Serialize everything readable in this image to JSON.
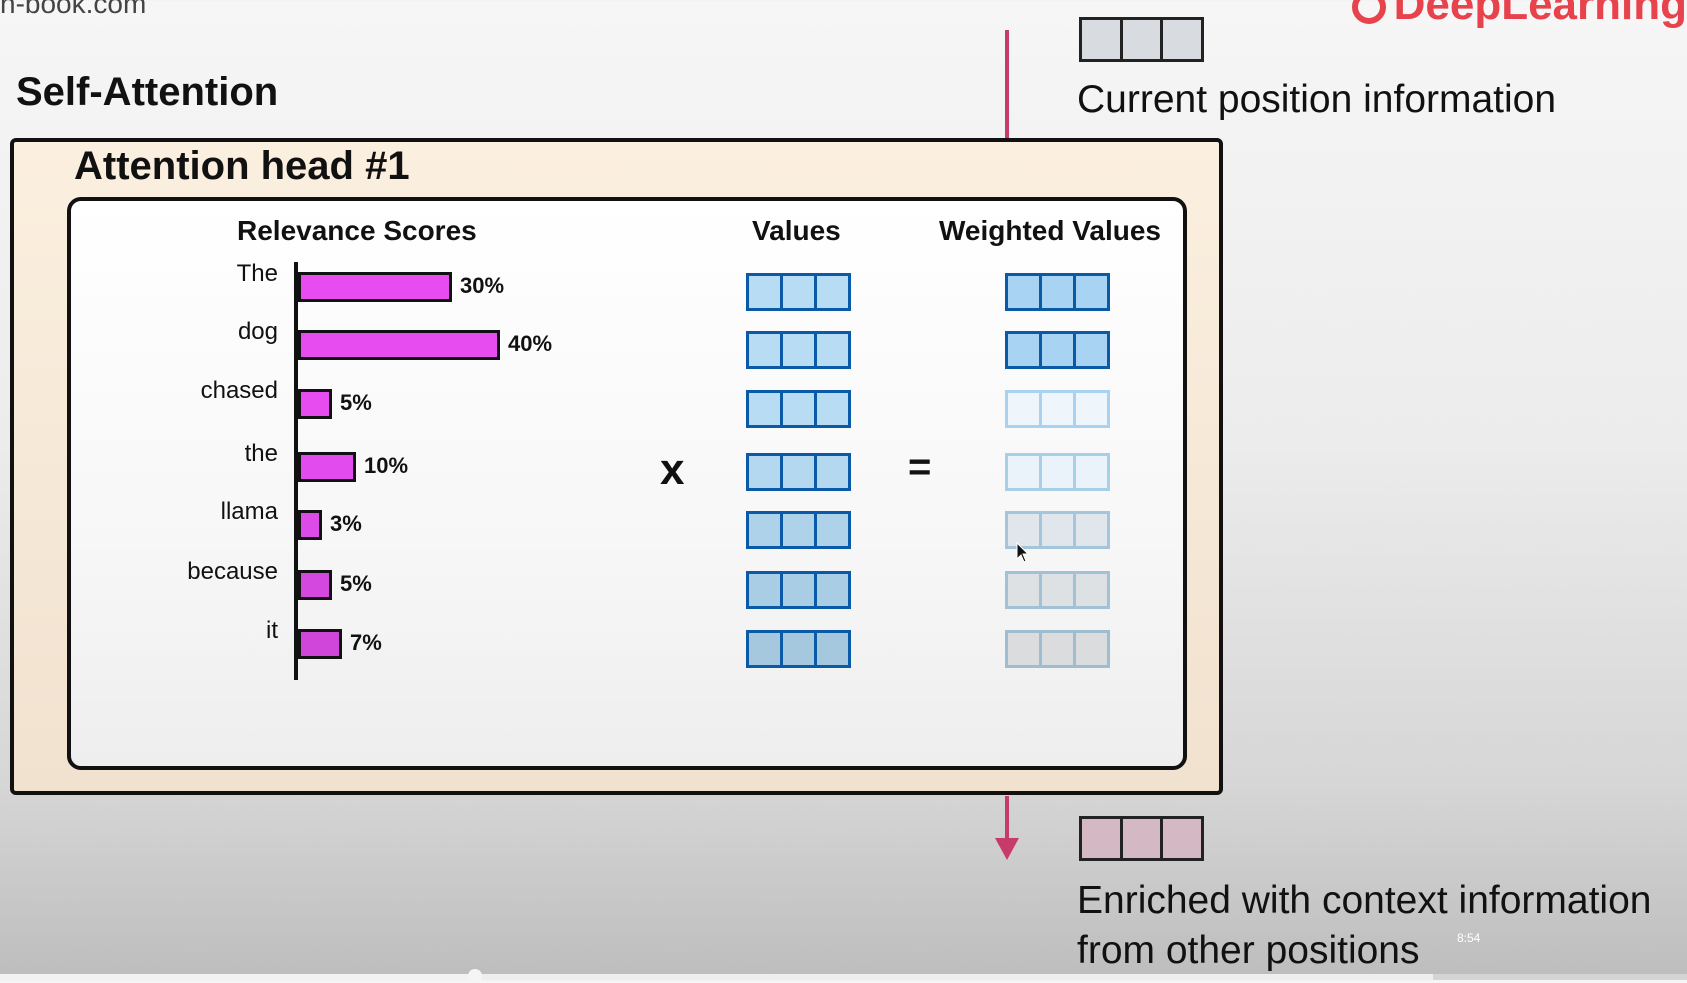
{
  "header": {
    "site_text": "n-book.com",
    "brand_text": "DeepLearning",
    "brand_color": "#e8424d"
  },
  "section_title": "Self-Attention",
  "attention_head": {
    "title": "Attention head #1",
    "headers": {
      "relevance": "Relevance Scores",
      "values": "Values",
      "weighted": "Weighted Values"
    },
    "operators": {
      "multiply": "x",
      "equals": "="
    },
    "rows": [
      {
        "word": "The",
        "score_pct": 30,
        "label": "30%",
        "bar_color": "#e64cf0",
        "value_color": "#b7dcf3",
        "weighted_color": "#a9d3f2",
        "weighted_border": "#0b5aa8"
      },
      {
        "word": "dog",
        "score_pct": 40,
        "label": "40%",
        "bar_color": "#e64cf0",
        "value_color": "#b7dcf3",
        "weighted_color": "#a9d3f2",
        "weighted_border": "#0b5aa8"
      },
      {
        "word": "chased",
        "score_pct": 5,
        "label": "5%",
        "bar_color": "#e64cf0",
        "value_color": "#b7dcf3",
        "weighted_color": "#eef6fb",
        "weighted_border": "#a8d2ef"
      },
      {
        "word": "the",
        "score_pct": 10,
        "label": "10%",
        "bar_color": "#e24bee",
        "value_color": "#b4d8f0",
        "weighted_color": "#e9f3f9",
        "weighted_border": "#a8cfe8"
      },
      {
        "word": "llama",
        "score_pct": 3,
        "label": "3%",
        "bar_color": "#dc4ae8",
        "value_color": "#aed2ea",
        "weighted_color": "#e0e6eb",
        "weighted_border": "#a3c6dc"
      },
      {
        "word": "because",
        "score_pct": 5,
        "label": "5%",
        "bar_color": "#d548e0",
        "value_color": "#a9cde4",
        "weighted_color": "#dde1e4",
        "weighted_border": "#a0c1d6"
      },
      {
        "word": "it",
        "score_pct": 7,
        "label": "7%",
        "bar_color": "#d046da",
        "value_color": "#a6c8de",
        "weighted_color": "#dadcde",
        "weighted_border": "#9fbdd1"
      }
    ]
  },
  "legend": {
    "current_label": "Current position information",
    "enriched_line1": "Enriched with context information",
    "enriched_line2": "from other positions"
  },
  "player": {
    "timestamp": "8:54",
    "progress_fraction": 0.28
  }
}
